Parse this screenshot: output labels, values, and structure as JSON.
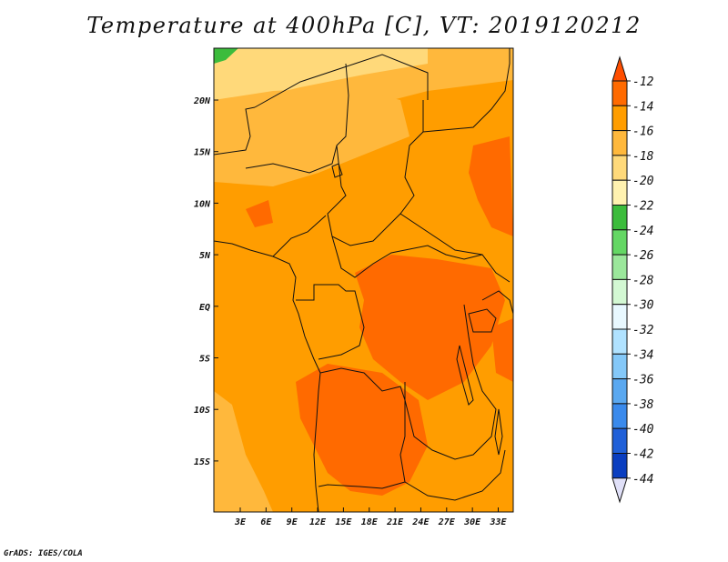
{
  "title": "Temperature at 400hPa [C], VT: 2019120212",
  "credit": "GrADS: IGES/COLA",
  "lat_labels": [
    "20N",
    "15N",
    "10N",
    "5N",
    "EQ",
    "5S",
    "10S",
    "15S"
  ],
  "lon_labels": [
    "3E",
    "6E",
    "9E",
    "12E",
    "15E",
    "18E",
    "21E",
    "24E",
    "27E",
    "30E",
    "33E"
  ],
  "colorbar": {
    "labels": [
      "-12",
      "-14",
      "-16",
      "-18",
      "-20",
      "-22",
      "-24",
      "-26",
      "-28",
      "-30",
      "-32",
      "-34",
      "-36",
      "-38",
      "-40",
      "-42",
      "-44"
    ],
    "colors": [
      "#ff4e00",
      "#ff6a00",
      "#ff9d00",
      "#ffb83c",
      "#ffd97a",
      "#fff2b0",
      "#3cbc3c",
      "#64d764",
      "#9be79b",
      "#d3f8d3",
      "#e8f8ff",
      "#b0e2ff",
      "#84c8f8",
      "#5aa8f0",
      "#3a8aec",
      "#2060d8",
      "#0a3ec0",
      "#0a1c8c"
    ],
    "under_color": "#0a1c8c",
    "over_color": "#ff4e00",
    "arrow_top_color": "#ff4e00",
    "arrow_bottom_color": "#e0e0f8"
  },
  "map_colors": {
    "warmest": "#ff6a00",
    "warm": "#ff9d00",
    "mid": "#ffb83c",
    "cool": "#ffd97a",
    "coolest": "#fff2b0",
    "green": "#3cbc3c"
  }
}
